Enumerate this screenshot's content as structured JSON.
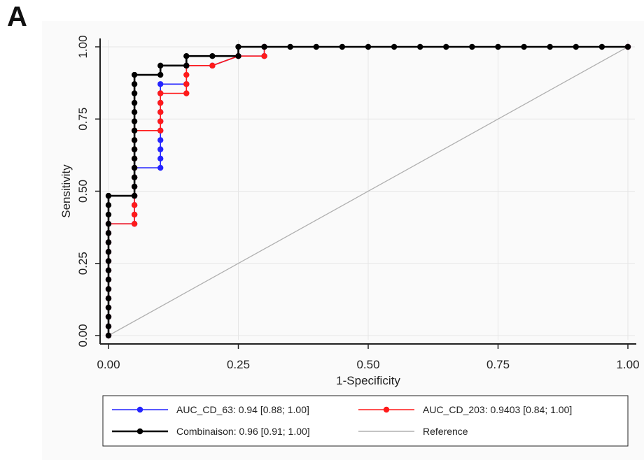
{
  "panel_label": "A",
  "colors": {
    "auc_cd_63": "#2424ff",
    "auc_cd_203": "#ff1a1a",
    "combinaison": "#000000",
    "reference": "#b0b0b0",
    "grid": "#e6e6e6"
  },
  "chart_data": {
    "type": "line",
    "title": "",
    "xlabel": "1-Specificity",
    "ylabel": "Sensitivity",
    "xlim": [
      0,
      1
    ],
    "ylim": [
      0,
      1
    ],
    "grid": true,
    "x_ticks": [
      "0.00",
      "0.25",
      "0.50",
      "0.75",
      "1.00"
    ],
    "y_ticks": [
      "0.00",
      "0.25",
      "0.50",
      "0.75",
      "1.00"
    ],
    "legend_position": "bottom",
    "series": [
      {
        "name": "AUC_CD_63: 0.94 [0.88; 1.00]",
        "color_key": "auc_cd_63",
        "points": [
          [
            0,
            0
          ],
          [
            0,
            0.032
          ],
          [
            0,
            0.065
          ],
          [
            0,
            0.097
          ],
          [
            0,
            0.129
          ],
          [
            0,
            0.161
          ],
          [
            0,
            0.194
          ],
          [
            0,
            0.226
          ],
          [
            0,
            0.258
          ],
          [
            0,
            0.29
          ],
          [
            0,
            0.323
          ],
          [
            0,
            0.355
          ],
          [
            0,
            0.387
          ],
          [
            0.05,
            0.387
          ],
          [
            0.05,
            0.419
          ],
          [
            0.05,
            0.452
          ],
          [
            0.05,
            0.484
          ],
          [
            0.05,
            0.516
          ],
          [
            0.05,
            0.548
          ],
          [
            0.05,
            0.581
          ],
          [
            0.1,
            0.581
          ],
          [
            0.1,
            0.613
          ],
          [
            0.1,
            0.645
          ],
          [
            0.1,
            0.677
          ],
          [
            0.1,
            0.71
          ],
          [
            0.1,
            0.742
          ],
          [
            0.1,
            0.774
          ],
          [
            0.1,
            0.806
          ],
          [
            0.1,
            0.839
          ],
          [
            0.1,
            0.871
          ],
          [
            0.15,
            0.871
          ],
          [
            0.15,
            0.935
          ],
          [
            0.2,
            0.935
          ],
          [
            0.25,
            0.968
          ],
          [
            0.3,
            0.968
          ],
          [
            0.3,
            1.0
          ],
          [
            1.0,
            1.0
          ]
        ]
      },
      {
        "name": "AUC_CD_203: 0.9403 [0.84; 1.00]",
        "color_key": "auc_cd_203",
        "points": [
          [
            0,
            0
          ],
          [
            0,
            0.032
          ],
          [
            0,
            0.065
          ],
          [
            0,
            0.097
          ],
          [
            0,
            0.129
          ],
          [
            0,
            0.161
          ],
          [
            0,
            0.194
          ],
          [
            0,
            0.226
          ],
          [
            0,
            0.258
          ],
          [
            0,
            0.29
          ],
          [
            0,
            0.323
          ],
          [
            0,
            0.355
          ],
          [
            0,
            0.387
          ],
          [
            0.05,
            0.387
          ],
          [
            0.05,
            0.419
          ],
          [
            0.05,
            0.452
          ],
          [
            0.05,
            0.484
          ],
          [
            0.05,
            0.516
          ],
          [
            0.05,
            0.548
          ],
          [
            0.05,
            0.581
          ],
          [
            0.05,
            0.613
          ],
          [
            0.05,
            0.645
          ],
          [
            0.05,
            0.677
          ],
          [
            0.05,
            0.71
          ],
          [
            0.1,
            0.71
          ],
          [
            0.1,
            0.742
          ],
          [
            0.1,
            0.774
          ],
          [
            0.1,
            0.806
          ],
          [
            0.1,
            0.839
          ],
          [
            0.15,
            0.839
          ],
          [
            0.15,
            0.871
          ],
          [
            0.15,
            0.903
          ],
          [
            0.15,
            0.935
          ],
          [
            0.2,
            0.935
          ],
          [
            0.25,
            0.968
          ],
          [
            0.3,
            0.968
          ],
          [
            0.3,
            1.0
          ],
          [
            1.0,
            1.0
          ]
        ]
      },
      {
        "name": "Combinaison: 0.96 [0.91; 1.00]",
        "color_key": "combinaison",
        "points": [
          [
            0,
            0
          ],
          [
            0,
            0.032
          ],
          [
            0,
            0.065
          ],
          [
            0,
            0.097
          ],
          [
            0,
            0.129
          ],
          [
            0,
            0.161
          ],
          [
            0,
            0.194
          ],
          [
            0,
            0.226
          ],
          [
            0,
            0.258
          ],
          [
            0,
            0.29
          ],
          [
            0,
            0.323
          ],
          [
            0,
            0.355
          ],
          [
            0,
            0.387
          ],
          [
            0,
            0.419
          ],
          [
            0,
            0.452
          ],
          [
            0,
            0.484
          ],
          [
            0.05,
            0.484
          ],
          [
            0.05,
            0.516
          ],
          [
            0.05,
            0.548
          ],
          [
            0.05,
            0.581
          ],
          [
            0.05,
            0.613
          ],
          [
            0.05,
            0.645
          ],
          [
            0.05,
            0.677
          ],
          [
            0.05,
            0.71
          ],
          [
            0.05,
            0.742
          ],
          [
            0.05,
            0.774
          ],
          [
            0.05,
            0.806
          ],
          [
            0.05,
            0.839
          ],
          [
            0.05,
            0.871
          ],
          [
            0.05,
            0.903
          ],
          [
            0.1,
            0.903
          ],
          [
            0.1,
            0.935
          ],
          [
            0.15,
            0.935
          ],
          [
            0.15,
            0.968
          ],
          [
            0.2,
            0.968
          ],
          [
            0.25,
            0.968
          ],
          [
            0.25,
            1.0
          ],
          [
            0.3,
            1.0
          ],
          [
            0.35,
            1.0
          ],
          [
            0.4,
            1.0
          ],
          [
            0.45,
            1.0
          ],
          [
            0.5,
            1.0
          ],
          [
            0.55,
            1.0
          ],
          [
            0.6,
            1.0
          ],
          [
            0.65,
            1.0
          ],
          [
            0.7,
            1.0
          ],
          [
            0.75,
            1.0
          ],
          [
            0.8,
            1.0
          ],
          [
            0.85,
            1.0
          ],
          [
            0.9,
            1.0
          ],
          [
            0.95,
            1.0
          ],
          [
            1.0,
            1.0
          ]
        ]
      },
      {
        "name": "Reference",
        "color_key": "reference",
        "points": [
          [
            0,
            0
          ],
          [
            1,
            1
          ]
        ],
        "markers": false
      }
    ]
  }
}
